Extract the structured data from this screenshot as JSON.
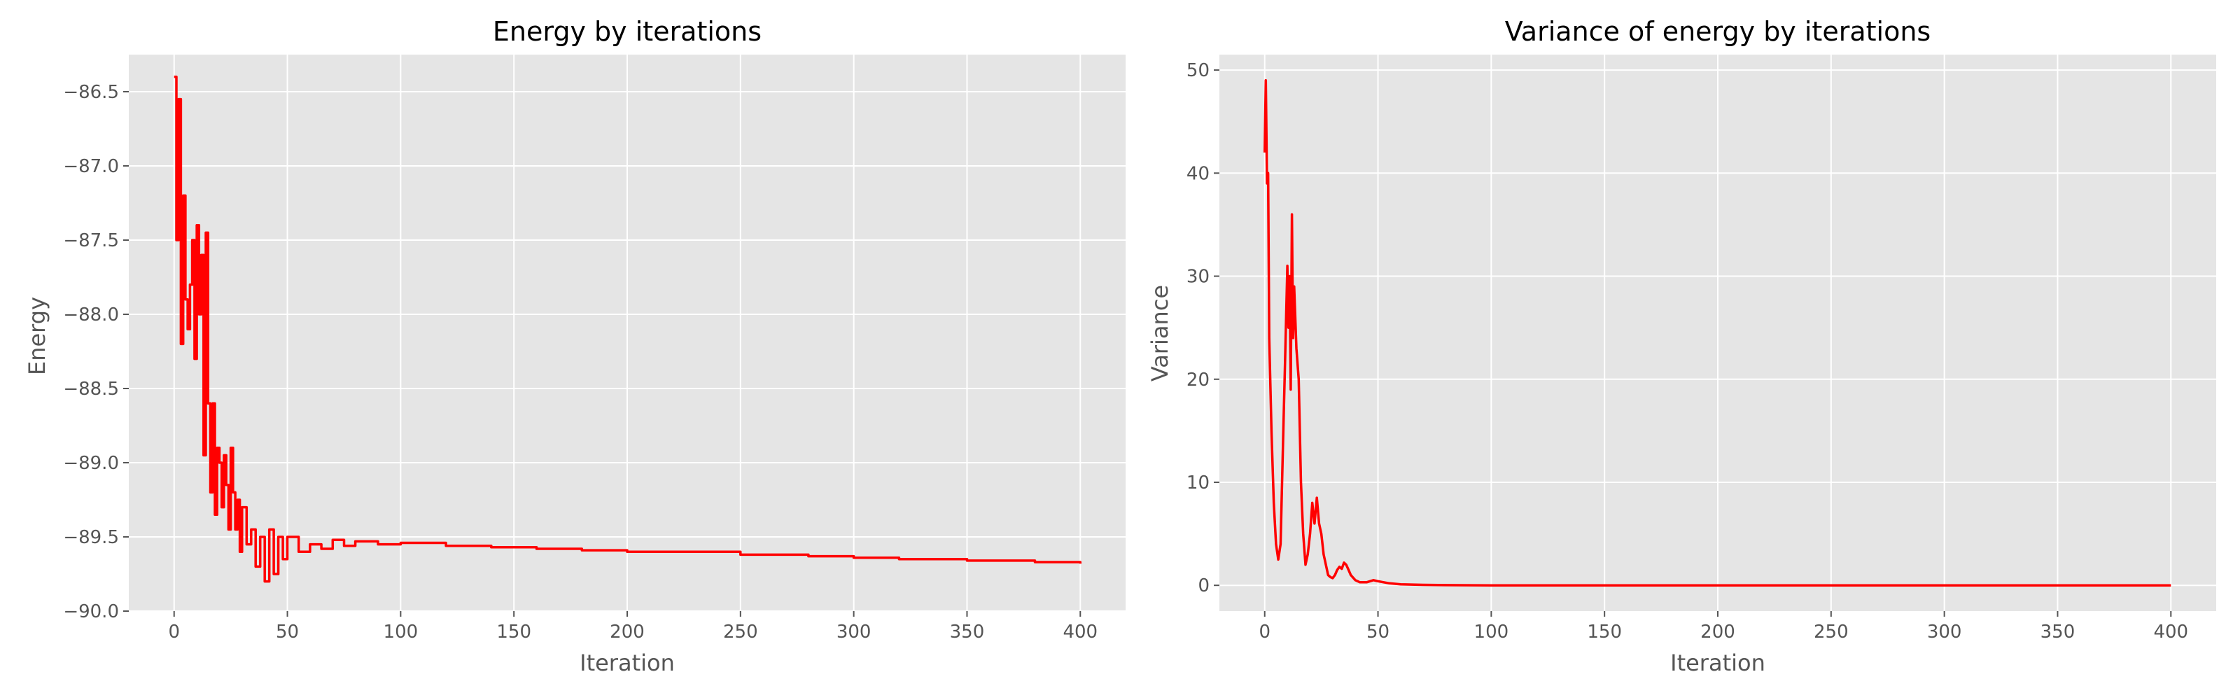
{
  "figure": {
    "background": "#ffffff",
    "plot_background": "#e5e5e5",
    "grid_color": "#ffffff",
    "line_color": "#ff0000",
    "text_color": "#555555",
    "title_color": "#000000"
  },
  "chart_data": [
    {
      "type": "line",
      "title": "Energy by iterations",
      "xlabel": "Iteration",
      "ylabel": "Energy",
      "xlim": [
        -20,
        420
      ],
      "ylim": [
        -90.0,
        -86.25
      ],
      "xticks": [
        0,
        50,
        100,
        150,
        200,
        250,
        300,
        350,
        400
      ],
      "xtick_labels": [
        "0",
        "50",
        "100",
        "150",
        "200",
        "250",
        "300",
        "350",
        "400"
      ],
      "yticks": [
        -90.0,
        -89.5,
        -89.0,
        -88.5,
        -88.0,
        -87.5,
        -87.0,
        -86.5
      ],
      "ytick_labels": [
        "−90.0",
        "−89.5",
        "−89.0",
        "−88.5",
        "−88.0",
        "−87.5",
        "−87.0",
        "−86.5"
      ],
      "grid": true,
      "color": "#ff0000",
      "drawstyle": "steps",
      "series": [
        {
          "x": [
            0,
            1,
            2,
            3,
            4,
            5,
            6,
            7,
            8,
            9,
            10,
            11,
            12,
            13,
            14,
            15,
            16,
            17,
            18,
            19,
            20,
            21,
            22,
            23,
            24,
            25,
            26,
            27,
            28,
            29,
            30,
            32,
            34,
            36,
            38,
            40,
            42,
            44,
            46,
            48,
            50,
            55,
            60,
            65,
            70,
            75,
            80,
            90,
            100,
            120,
            140,
            160,
            180,
            200,
            220,
            250,
            280,
            300,
            320,
            350,
            380,
            400
          ],
          "y": [
            -86.4,
            -87.5,
            -86.55,
            -88.2,
            -87.2,
            -87.9,
            -88.1,
            -87.8,
            -87.5,
            -88.3,
            -87.4,
            -88.0,
            -87.6,
            -88.95,
            -87.45,
            -88.6,
            -89.2,
            -88.6,
            -89.35,
            -88.9,
            -89.0,
            -89.3,
            -88.95,
            -89.15,
            -89.45,
            -88.9,
            -89.2,
            -89.45,
            -89.25,
            -89.6,
            -89.3,
            -89.55,
            -89.45,
            -89.7,
            -89.5,
            -89.8,
            -89.45,
            -89.75,
            -89.5,
            -89.65,
            -89.5,
            -89.6,
            -89.55,
            -89.58,
            -89.52,
            -89.56,
            -89.53,
            -89.55,
            -89.54,
            -89.56,
            -89.57,
            -89.58,
            -89.59,
            -89.6,
            -89.6,
            -89.62,
            -89.63,
            -89.64,
            -89.65,
            -89.66,
            -89.67,
            -89.68
          ]
        }
      ]
    },
    {
      "type": "line",
      "title": "Variance of energy by iterations",
      "xlabel": "Iteration",
      "ylabel": "Variance",
      "xlim": [
        -20,
        420
      ],
      "ylim": [
        -2.5,
        51.5
      ],
      "xticks": [
        0,
        50,
        100,
        150,
        200,
        250,
        300,
        350,
        400
      ],
      "xtick_labels": [
        "0",
        "50",
        "100",
        "150",
        "200",
        "250",
        "300",
        "350",
        "400"
      ],
      "yticks": [
        0,
        10,
        20,
        30,
        40,
        50
      ],
      "ytick_labels": [
        "0",
        "10",
        "20",
        "30",
        "40",
        "50"
      ],
      "grid": true,
      "color": "#ff0000",
      "series": [
        {
          "x": [
            0,
            0.5,
            1,
            1.5,
            2,
            3,
            4,
            5,
            6,
            7,
            8,
            9,
            10,
            10.5,
            11,
            11.5,
            12,
            12.5,
            13,
            14,
            15,
            16,
            17,
            18,
            19,
            20,
            21,
            22,
            23,
            24,
            25,
            26,
            27,
            28,
            29,
            30,
            31,
            32,
            33,
            34,
            35,
            36,
            37,
            38,
            40,
            42,
            45,
            48,
            50,
            55,
            60,
            70,
            80,
            100,
            150,
            200,
            250,
            300,
            350,
            400
          ],
          "y": [
            42,
            49,
            39,
            40,
            24,
            15,
            8,
            4,
            2.5,
            4,
            13,
            22,
            31,
            25,
            30,
            19,
            36,
            24,
            29,
            23,
            20,
            10,
            5,
            2,
            3,
            5,
            8,
            6,
            8.5,
            6,
            5,
            3,
            2,
            1,
            0.8,
            0.7,
            1,
            1.5,
            1.8,
            1.6,
            2.2,
            2,
            1.5,
            1,
            0.5,
            0.3,
            0.3,
            0.5,
            0.4,
            0.2,
            0.1,
            0.05,
            0.02,
            0.0,
            0.0,
            0.0,
            0.0,
            0.0,
            0.0,
            0.0
          ]
        }
      ]
    }
  ]
}
